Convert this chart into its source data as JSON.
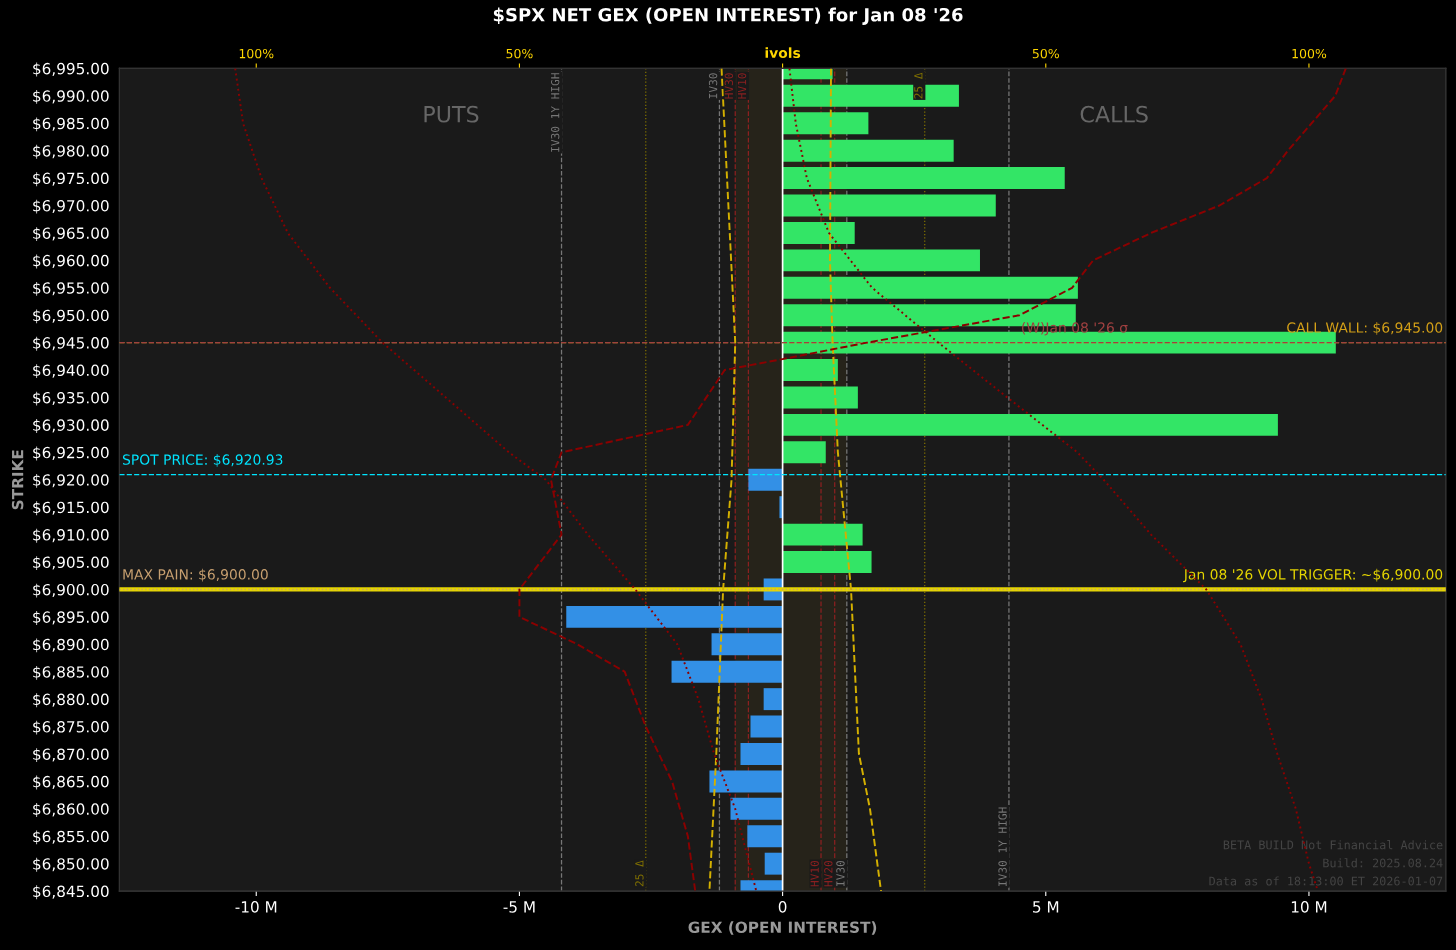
{
  "chart_data": {
    "type": "bar",
    "orientation": "horizontal",
    "title": "$SPX NET GEX (OPEN INTEREST) for Jan 08 '26",
    "xlabel": "GEX (OPEN INTEREST)",
    "ylabel": "STRIKE",
    "x": [
      6995,
      6990,
      6985,
      6980,
      6975,
      6970,
      6965,
      6960,
      6955,
      6950,
      6945,
      6940,
      6935,
      6930,
      6925,
      6920,
      6915,
      6910,
      6905,
      6900,
      6895,
      6890,
      6885,
      6880,
      6875,
      6870,
      6865,
      6860,
      6855,
      6850,
      6845
    ],
    "series": [
      {
        "values": [
          0.95,
          3.35,
          1.63,
          3.25,
          5.36,
          4.05,
          1.37,
          3.75,
          5.61,
          5.57,
          10.51,
          1.05,
          1.43,
          9.41,
          0.82,
          -0.65,
          -0.06,
          1.52,
          1.69,
          -0.36,
          -4.11,
          -1.35,
          -2.11,
          -0.36,
          -0.61,
          -0.8,
          -1.39,
          -0.99,
          -0.67,
          -0.34,
          -0.8
        ],
        "colors": [
          "#33e566",
          "#33e566",
          "#33e566",
          "#33e566",
          "#33e566",
          "#33e566",
          "#33e566",
          "#33e566",
          "#33e566",
          "#33e566",
          "#33e566",
          "#33e566",
          "#33e566",
          "#33e566",
          "#33e566",
          "#3390e6",
          "#3390e6",
          "#33e566",
          "#33e566",
          "#3390e6",
          "#3390e6",
          "#3390e6",
          "#3390e6",
          "#3390e6",
          "#3390e6",
          "#3390e6",
          "#3390e6",
          "#3390e6",
          "#3390e6",
          "#3390e6",
          "#3390e6"
        ]
      },
      {
        "type": "line",
        "axis": "x2",
        "color": "#d4b000",
        "line_style": "dashed",
        "x": [
          6995,
          6945,
          6920,
          6900,
          6870,
          6845
        ],
        "values": [
          -11.6,
          -9.0,
          -9.7,
          -11.3,
          -12.6,
          -13.9
        ]
      },
      {
        "type": "line",
        "axis": "x2",
        "color": "#d4b000",
        "line_style": "dashed",
        "x": [
          6995,
          6960,
          6945,
          6925,
          6900,
          6880,
          6870,
          6860,
          6845
        ],
        "values": [
          9.2,
          9.0,
          9.5,
          10.5,
          13,
          14,
          14.5,
          16.6,
          18.7
        ]
      },
      {
        "type": "line",
        "axis": "x2",
        "color": "#8b0000",
        "line_style": "dashed",
        "x": [
          6995,
          6990,
          6980,
          6975,
          6970,
          6965,
          6960,
          6955,
          6950,
          6945,
          6942,
          6940,
          6930,
          6925,
          6920,
          6915,
          6910,
          6900,
          6895,
          6890,
          6885,
          6875,
          6865,
          6855,
          6845
        ],
        "values": [
          107,
          105,
          96,
          92,
          83,
          70,
          59,
          55,
          45,
          16,
          0,
          -11,
          -18,
          -42,
          -44,
          -43,
          -42,
          -50,
          -50,
          -39,
          -30,
          -26,
          -21,
          -18,
          -16.6
        ]
      },
      {
        "type": "line",
        "axis": "x2",
        "color": "#8b0000",
        "line_style": "dotted",
        "x": [
          6995,
          6985,
          6975,
          6965,
          6955,
          6945,
          6935,
          6925,
          6920,
          6910,
          6900,
          6890,
          6880,
          6870,
          6860,
          6845
        ],
        "values": [
          -104,
          -102.5,
          -99,
          -94,
          -86,
          -76,
          -64,
          -52,
          -45,
          -37,
          -28,
          -20,
          -16,
          -13,
          -9,
          -5
        ]
      },
      {
        "type": "line",
        "axis": "x2",
        "color": "#8b0000",
        "line_style": "dotted",
        "x": [
          6995,
          6985,
          6975,
          6965,
          6955,
          6945,
          6935,
          6925,
          6920,
          6910,
          6900,
          6890,
          6880,
          6870,
          6860,
          6850,
          6845
        ],
        "values": [
          1.3,
          2.5,
          4.6,
          8.8,
          17,
          29.6,
          42.7,
          56,
          61,
          70,
          80.5,
          87,
          91,
          94,
          97.5,
          100,
          101.7
        ]
      }
    ],
    "xlim": [
      -12.6,
      12.6
    ],
    "xticks": [
      {
        "value": -10,
        "label": "-10 M"
      },
      {
        "value": -5,
        "label": "-5 M"
      },
      0,
      {
        "value": 5,
        "label": "5 M"
      },
      {
        "value": 10,
        "label": "10 M"
      }
    ],
    "x2lim": [
      -126,
      126
    ],
    "x2ticks": [
      {
        "value": -100,
        "label": "100%"
      },
      {
        "value": -50,
        "label": "50%"
      },
      {
        "value": 0,
        "label": "ivols"
      },
      {
        "value": 50,
        "label": "50%"
      },
      {
        "value": 100,
        "label": "100%"
      }
    ],
    "ylim": [
      6845,
      6995
    ],
    "yticks": [
      {
        "value": 6995,
        "label": "$6,995.00"
      },
      {
        "value": 6990,
        "label": "$6,990.00"
      },
      {
        "value": 6985,
        "label": "$6,985.00"
      },
      {
        "value": 6980,
        "label": "$6,980.00"
      },
      {
        "value": 6975,
        "label": "$6,975.00"
      },
      {
        "value": 6970,
        "label": "$6,970.00"
      },
      {
        "value": 6965,
        "label": "$6,965.00"
      },
      {
        "value": 6960,
        "label": "$6,960.00"
      },
      {
        "value": 6955,
        "label": "$6,955.00"
      },
      {
        "value": 6950,
        "label": "$6,950.00"
      },
      {
        "value": 6945,
        "label": "$6,945.00"
      },
      {
        "value": 6940,
        "label": "$6,940.00"
      },
      {
        "value": 6935,
        "label": "$6,935.00"
      },
      {
        "value": 6930,
        "label": "$6,930.00"
      },
      {
        "value": 6925,
        "label": "$6,925.00"
      },
      {
        "value": 6920,
        "label": "$6,920.00"
      },
      {
        "value": 6915,
        "label": "$6,915.00"
      },
      {
        "value": 6910,
        "label": "$6,910.00"
      },
      {
        "value": 6905,
        "label": "$6,905.00"
      },
      {
        "value": 6900,
        "label": "$6,900.00"
      },
      {
        "value": 6895,
        "label": "$6,895.00"
      },
      {
        "value": 6890,
        "label": "$6,890.00"
      },
      {
        "value": 6885,
        "label": "$6,885.00"
      },
      {
        "value": 6880,
        "label": "$6,880.00"
      },
      {
        "value": 6875,
        "label": "$6,875.00"
      },
      {
        "value": 6870,
        "label": "$6,870.00"
      },
      {
        "value": 6865,
        "label": "$6,865.00"
      },
      {
        "value": 6860,
        "label": "$6,860.00"
      },
      {
        "value": 6855,
        "label": "$6,855.00"
      },
      {
        "value": 6850,
        "label": "$6,850.00"
      },
      {
        "value": 6845,
        "label": "$6,845.00"
      }
    ],
    "bands": [
      {
        "axis": "x2",
        "from": -9,
        "to": 12.2,
        "color": "#26231a"
      }
    ],
    "ref_lines": [
      {
        "axis": "y",
        "value": 6920.93,
        "label": "SPOT PRICE: $6,920.93",
        "color": "#00e5ff",
        "line_style": "dashed"
      },
      {
        "axis": "y",
        "value": 6945,
        "label": "CALL WALL: $6,945.00",
        "color": "#d4a017",
        "line_style": "dashed"
      },
      {
        "axis": "y",
        "value": 6945,
        "label": "(W)Jan 08 '26 σ",
        "color": "#a04040",
        "line_style": "dashed"
      },
      {
        "axis": "y",
        "value": 6900,
        "label": "Jan 08 '26 VOL TRIGGER: ~$6,900.00",
        "color": "#e6d600",
        "line_style": "solid"
      },
      {
        "axis": "y",
        "value": 6900,
        "label": "MAX PAIN: $6,900.00",
        "color": "#c8a070",
        "line_style": "dotted"
      },
      {
        "axis": "x2",
        "value": -42,
        "label": "IV30 1Y HIGH",
        "color": "#777777",
        "line_style": "dashed"
      },
      {
        "axis": "x2",
        "value": 43,
        "label": "IV30 1Y HIGH",
        "color": "#777777",
        "line_style": "dashed"
      },
      {
        "axis": "x2",
        "value": -26,
        "label": "25 Δ",
        "color": "#807000",
        "line_style": "dotted"
      },
      {
        "axis": "x2",
        "value": 27,
        "label": "25 Δ",
        "color": "#807000",
        "line_style": "dotted"
      },
      {
        "axis": "x2",
        "value": -12,
        "label": "IV30",
        "color": "#777777",
        "line_style": "dashed"
      },
      {
        "axis": "x2",
        "value": -9,
        "label": "HV30",
        "color": "#8b2020",
        "line_style": "dashed"
      },
      {
        "axis": "x2",
        "value": -6.5,
        "label": "HV10",
        "color": "#8b2020",
        "line_style": "dashed"
      },
      {
        "axis": "x2",
        "value": 7.3,
        "label": "HV10",
        "color": "#8b2020",
        "line_style": "dashed"
      },
      {
        "axis": "x2",
        "value": 9.9,
        "label": "HV20",
        "color": "#8b2020",
        "line_style": "dashed"
      },
      {
        "axis": "x2",
        "value": 12.2,
        "label": "IV30",
        "color": "#777777",
        "line_style": "dashed"
      }
    ],
    "annotations": [
      "PUTS",
      "CALLS",
      "BETA BUILD Not Financial Advice",
      "Build: 2025.08.24",
      "Data as of 18:13:00 ET 2026-01-07"
    ],
    "grid": false,
    "legend": false
  }
}
